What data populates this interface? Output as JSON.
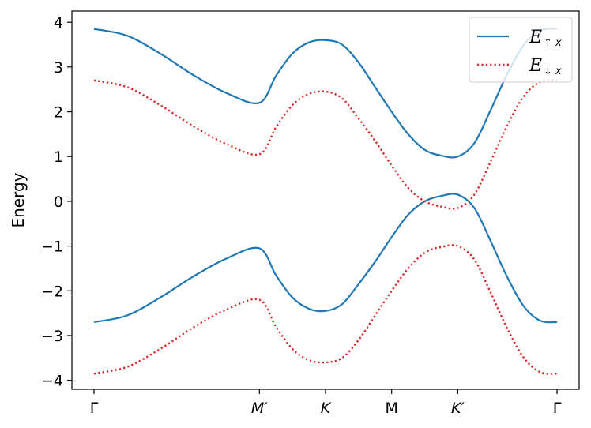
{
  "chart_data": {
    "type": "line",
    "xlabel": "",
    "ylabel": "Energy",
    "xlim": [
      0,
      7
    ],
    "ylim": [
      -4.2,
      4.25
    ],
    "grid": false,
    "legend_position": "top-right",
    "x_ticks": [
      {
        "value": 0,
        "label": "Γ",
        "italic": false
      },
      {
        "value": 2.5,
        "label": "M′",
        "italic": true
      },
      {
        "value": 3.5,
        "label": "K",
        "italic": true
      },
      {
        "value": 4.5,
        "label": "M",
        "italic": false
      },
      {
        "value": 5.5,
        "label": "K′",
        "italic": true
      },
      {
        "value": 7,
        "label": "Γ",
        "italic": false
      }
    ],
    "y_ticks": [
      {
        "value": 4,
        "label": "4"
      },
      {
        "value": 3,
        "label": "3"
      },
      {
        "value": 2,
        "label": "2"
      },
      {
        "value": 1,
        "label": "1"
      },
      {
        "value": 0,
        "label": "0"
      },
      {
        "value": -1,
        "label": "−1"
      },
      {
        "value": -2,
        "label": "−2"
      },
      {
        "value": -3,
        "label": "−3"
      },
      {
        "value": -4,
        "label": "−4"
      }
    ],
    "series": [
      {
        "name": "E↑x",
        "legend_main": "E",
        "legend_sub": "↑ x",
        "color": "#1f77b4",
        "style": "solid",
        "bands": [
          {
            "x": [
              0,
              0.5,
              1.0,
              1.5,
              2.0,
              2.5,
              2.75,
              3.0,
              3.25,
              3.5,
              3.75,
              4.0,
              4.25,
              4.5,
              4.75,
              5.0,
              5.25,
              5.5,
              5.75,
              6.0,
              6.25,
              6.5,
              6.75,
              7.0
            ],
            "y": [
              3.85,
              3.7,
              3.3,
              2.82,
              2.42,
              2.2,
              2.8,
              3.3,
              3.55,
              3.6,
              3.5,
              3.1,
              2.55,
              2.0,
              1.5,
              1.15,
              1.02,
              1.0,
              1.3,
              2.05,
              2.85,
              3.5,
              3.82,
              3.85
            ]
          },
          {
            "x": [
              0,
              0.5,
              1.0,
              1.5,
              2.0,
              2.5,
              2.75,
              3.0,
              3.25,
              3.5,
              3.75,
              4.0,
              4.25,
              4.5,
              4.75,
              5.0,
              5.25,
              5.5,
              5.75,
              6.0,
              6.25,
              6.5,
              6.75,
              7.0
            ],
            "y": [
              -2.7,
              -2.55,
              -2.15,
              -1.68,
              -1.28,
              -1.05,
              -1.65,
              -2.15,
              -2.4,
              -2.45,
              -2.3,
              -1.85,
              -1.35,
              -0.8,
              -0.3,
              0.0,
              0.12,
              0.15,
              -0.15,
              -0.9,
              -1.7,
              -2.35,
              -2.67,
              -2.7
            ]
          }
        ]
      },
      {
        "name": "E↓x",
        "legend_main": "E",
        "legend_sub": "↓ x",
        "color": "#d62728",
        "style": "dotted",
        "bands": [
          {
            "x": [
              0,
              0.5,
              1.0,
              1.5,
              2.0,
              2.5,
              2.75,
              3.0,
              3.25,
              3.5,
              3.75,
              4.0,
              4.25,
              4.5,
              4.75,
              5.0,
              5.25,
              5.5,
              5.75,
              6.0,
              6.25,
              6.5,
              6.75,
              7.0
            ],
            "y": [
              2.7,
              2.55,
              2.15,
              1.68,
              1.28,
              1.05,
              1.65,
              2.15,
              2.4,
              2.45,
              2.3,
              1.85,
              1.35,
              0.8,
              0.3,
              0.0,
              -0.12,
              -0.15,
              0.15,
              0.9,
              1.7,
              2.35,
              2.67,
              2.7
            ]
          },
          {
            "x": [
              0,
              0.5,
              1.0,
              1.5,
              2.0,
              2.5,
              2.75,
              3.0,
              3.25,
              3.5,
              3.75,
              4.0,
              4.25,
              4.5,
              4.75,
              5.0,
              5.25,
              5.5,
              5.75,
              6.0,
              6.25,
              6.5,
              6.75,
              7.0
            ],
            "y": [
              -3.85,
              -3.7,
              -3.3,
              -2.82,
              -2.42,
              -2.2,
              -2.8,
              -3.3,
              -3.55,
              -3.6,
              -3.5,
              -3.1,
              -2.55,
              -2.0,
              -1.5,
              -1.15,
              -1.02,
              -1.0,
              -1.3,
              -2.05,
              -2.85,
              -3.5,
              -3.82,
              -3.85
            ]
          }
        ]
      }
    ]
  }
}
